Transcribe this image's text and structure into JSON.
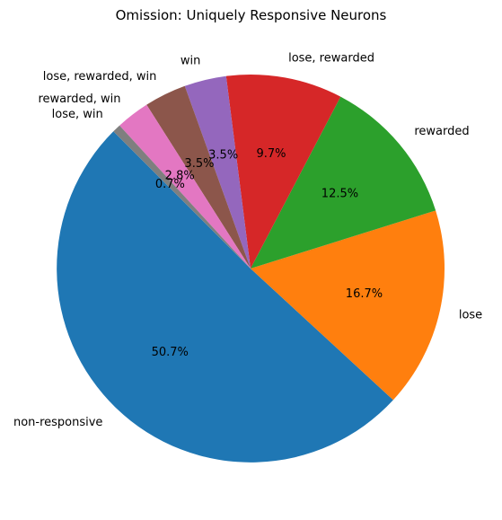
{
  "chart_data": {
    "type": "pie",
    "title": "Omission: Uniquely Responsive Neurons",
    "start_angle_deg": 135,
    "direction": "counterclockwise",
    "categories": [
      "non-responsive",
      "lose",
      "rewarded",
      "lose, rewarded",
      "win",
      "lose, rewarded, win",
      "rewarded, win",
      "lose, win"
    ],
    "values": [
      50.7,
      16.7,
      12.5,
      9.7,
      3.5,
      3.5,
      2.8,
      0.7
    ],
    "pct_labels": [
      "50.7%",
      "16.7%",
      "12.5%",
      "9.7%",
      "3.5%",
      "3.5%",
      "2.8%",
      "0.7%"
    ],
    "colors": [
      "#1f77b4",
      "#ff7f0e",
      "#2ca02c",
      "#d62728",
      "#9467bd",
      "#8c564b",
      "#e377c2",
      "#7f7f7f"
    ]
  }
}
